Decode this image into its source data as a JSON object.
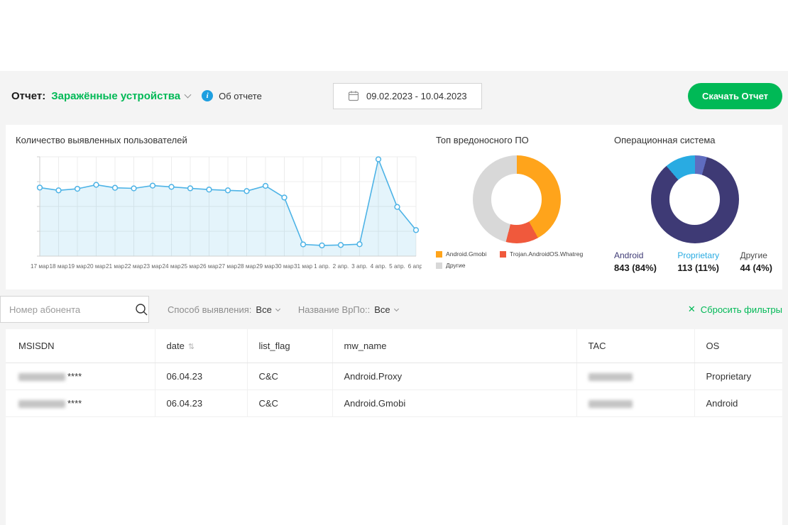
{
  "theme": {
    "accent": "#00B956",
    "info_blue": "#1e9fe0",
    "line_blue": "#4db3e6"
  },
  "header": {
    "report_label": "Отчет:",
    "report_name": "Заражённые устройства",
    "about_label": "Об отчете",
    "date_range": "09.02.2023 - 10.04.2023",
    "download_button": "Скачать Отчет"
  },
  "chart_data": {
    "users": {
      "type": "line",
      "title": "Количество выявленных пользователей",
      "categories": [
        "17 мар",
        "18 мар",
        "19 мар",
        "20 мар",
        "21 мар",
        "22 мар",
        "23 мар",
        "24 мар",
        "25 мар",
        "26 мар",
        "27 мар",
        "28 мар",
        "29 мар",
        "30 мар",
        "31 мар",
        "1 апр.",
        "2 апр.",
        "3 апр.",
        "4 апр.",
        "5 апр.",
        "6 апр."
      ],
      "values": [
        690,
        662,
        678,
        718,
        688,
        682,
        710,
        697,
        683,
        670,
        662,
        655,
        707,
        590,
        118,
        108,
        112,
        120,
        975,
        495,
        262
      ],
      "ylim": [
        0,
        1000
      ],
      "grid": true,
      "line_color": "#4db3e6",
      "marker": "circle-open"
    },
    "malware": {
      "type": "pie",
      "title": "Топ вредоносного ПО",
      "segments": [
        {
          "label": "Android.Gmobi",
          "value": 42,
          "color": "#FFA41B"
        },
        {
          "label": "Trojan.AndroidOS.Whatreg",
          "value": 12,
          "color": "#F0593C"
        },
        {
          "label": "Другие",
          "value": 46,
          "color": "#D8D8D8"
        }
      ],
      "legend_position": "bottom"
    },
    "os": {
      "type": "pie",
      "title": "Операционная система",
      "segments": [
        {
          "label": "Другие",
          "value": 4.4,
          "color": "#5F6CBF"
        },
        {
          "label": "Android",
          "value": 84.3,
          "color": "#3E3A75"
        },
        {
          "label": "Proprietary",
          "value": 11.3,
          "color": "#29ABE2"
        }
      ],
      "stats": [
        {
          "label": "Android",
          "value": "843 (84%)",
          "color": "#3E3A75"
        },
        {
          "label": "Proprietary",
          "value": "113 (11%)",
          "color": "#29ABE2"
        },
        {
          "label": "Другие",
          "value": "44 (4%)",
          "color": "#4a4a4a"
        }
      ]
    }
  },
  "filters": {
    "search_placeholder": "Номер абонента",
    "detection_label": "Способ выявления:",
    "detection_value": "Все",
    "malware_label": "Название ВрПо::",
    "malware_value": "Все",
    "reset_label": "Сбросить фильтры",
    "reset_icon": "✕"
  },
  "table": {
    "columns": {
      "c0": "MSISDN",
      "c1": "date",
      "c2": "list_flag",
      "c3": "mw_name",
      "c4": "TAC",
      "c5": "OS"
    },
    "sort_glyph": "⇅",
    "rows": [
      {
        "msisdn_mask": "****",
        "date": "06.04.23",
        "list_flag": "C&C",
        "mw_name": "Android.Proxy",
        "os": "Proprietary"
      },
      {
        "msisdn_mask": "****",
        "date": "06.04.23",
        "list_flag": "C&C",
        "mw_name": "Android.Gmobi",
        "os": "Android"
      }
    ]
  }
}
